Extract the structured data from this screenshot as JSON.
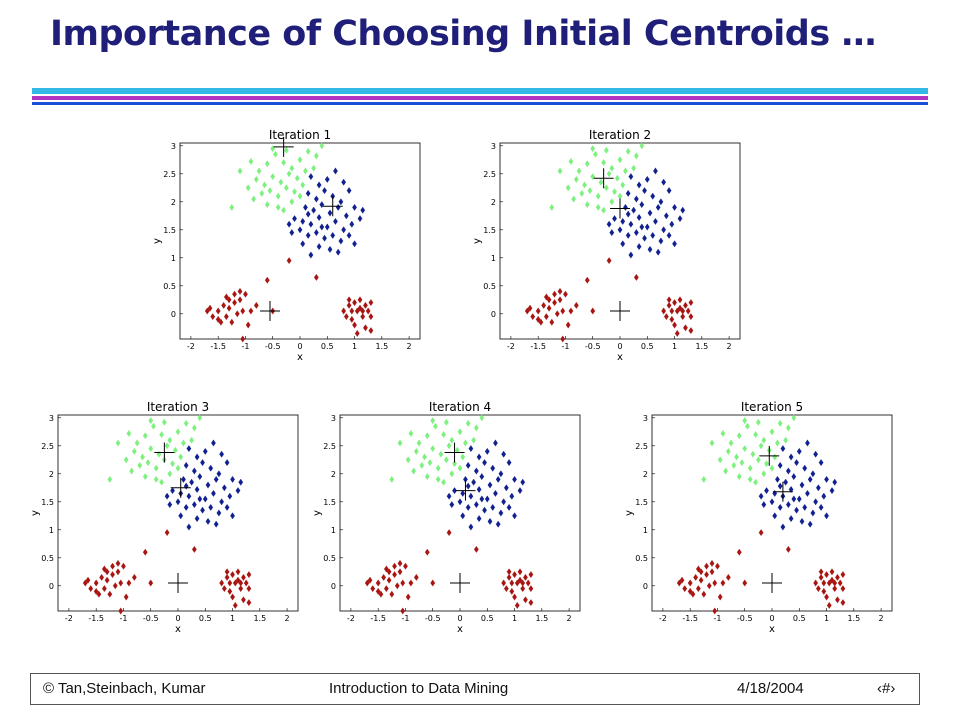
{
  "slide": {
    "title": "Importance of Choosing Initial Centroids …",
    "colors": {
      "title": "#1f1f7a",
      "bar_cyan": "#33b8e6",
      "bar_magenta": "#b232c2",
      "bar_blue": "#1a4fd6"
    }
  },
  "footer": {
    "left": "© Tan,Steinbach, Kumar",
    "center": "Introduction to Data Mining",
    "date": "4/18/2004",
    "page": "‹#›"
  },
  "chart_data": [
    {
      "type": "scatter",
      "title": "Iteration 1",
      "xlabel": "x",
      "ylabel": "y",
      "xlim": [
        -2.2,
        2.2
      ],
      "ylim": [
        -0.45,
        3.05
      ],
      "xticks": [
        "-2",
        "-1.5",
        "-1",
        "-0.5",
        "0",
        "0.5",
        "1",
        "1.5",
        "2"
      ],
      "yticks": [
        "0",
        "0.5",
        "1",
        "1.5",
        "2",
        "2.5",
        "3"
      ],
      "cluster_assignment": {
        "C1": [
          "upper_left"
        ],
        "C2": [
          "upper_right"
        ],
        "C3": [
          "lower_left",
          "lower_right"
        ]
      },
      "centroids": [
        {
          "x": -0.3,
          "y": 2.98
        },
        {
          "x": 0.6,
          "y": 1.92
        },
        {
          "x": -0.55,
          "y": 0.05
        }
      ]
    },
    {
      "type": "scatter",
      "title": "Iteration 2",
      "xlabel": "x",
      "ylabel": "y",
      "xlim": [
        -2.2,
        2.2
      ],
      "ylim": [
        -0.45,
        3.05
      ],
      "xticks": [
        "-2",
        "-1.5",
        "-1",
        "-0.5",
        "0",
        "0.5",
        "1",
        "1.5",
        "2"
      ],
      "yticks": [
        "0",
        "0.5",
        "1",
        "1.5",
        "2",
        "2.5",
        "3"
      ],
      "cluster_assignment": {
        "C1": [
          "upper_left"
        ],
        "C2": [
          "upper_right"
        ],
        "C3": [
          "lower_left",
          "lower_right"
        ]
      },
      "centroids": [
        {
          "x": -0.3,
          "y": 2.42
        },
        {
          "x": 0.0,
          "y": 1.88
        },
        {
          "x": 0.0,
          "y": 0.05
        }
      ]
    },
    {
      "type": "scatter",
      "title": "Iteration 3",
      "xlabel": "x",
      "ylabel": "y",
      "xlim": [
        -2.2,
        2.2
      ],
      "ylim": [
        -0.45,
        3.05
      ],
      "xticks": [
        "-2",
        "-1.5",
        "-1",
        "-0.5",
        "0",
        "0.5",
        "1",
        "1.5",
        "2"
      ],
      "yticks": [
        "0",
        "0.5",
        "1",
        "1.5",
        "2",
        "2.5",
        "3"
      ],
      "cluster_assignment": {
        "C1": [
          "upper_left"
        ],
        "C2": [
          "upper_right"
        ],
        "C3": [
          "lower_left",
          "lower_right"
        ]
      },
      "centroids": [
        {
          "x": -0.25,
          "y": 2.38
        },
        {
          "x": 0.05,
          "y": 1.75
        },
        {
          "x": 0.0,
          "y": 0.05
        }
      ]
    },
    {
      "type": "scatter",
      "title": "Iteration 4",
      "xlabel": "x",
      "ylabel": "y",
      "xlim": [
        -2.2,
        2.2
      ],
      "ylim": [
        -0.45,
        3.05
      ],
      "xticks": [
        "-2",
        "-1.5",
        "-1",
        "-0.5",
        "0",
        "0.5",
        "1",
        "1.5",
        "2"
      ],
      "yticks": [
        "0",
        "0.5",
        "1",
        "1.5",
        "2",
        "2.5",
        "3"
      ],
      "cluster_assignment": {
        "C1": [
          "upper_left"
        ],
        "C2": [
          "upper_right"
        ],
        "C3": [
          "lower_left",
          "lower_right"
        ]
      },
      "centroids": [
        {
          "x": -0.1,
          "y": 2.38
        },
        {
          "x": 0.1,
          "y": 1.7
        },
        {
          "x": 0.0,
          "y": 0.05
        }
      ]
    },
    {
      "type": "scatter",
      "title": "Iteration 5",
      "xlabel": "x",
      "ylabel": "y",
      "xlim": [
        -2.2,
        2.2
      ],
      "ylim": [
        -0.45,
        3.05
      ],
      "xticks": [
        "-2",
        "-1.5",
        "-1",
        "-0.5",
        "0",
        "0.5",
        "1",
        "1.5",
        "2"
      ],
      "yticks": [
        "0",
        "0.5",
        "1",
        "1.5",
        "2",
        "2.5",
        "3"
      ],
      "cluster_assignment": {
        "C1": [
          "upper_left"
        ],
        "C2": [
          "upper_right"
        ],
        "C3": [
          "lower_left",
          "lower_right"
        ]
      },
      "centroids": [
        {
          "x": -0.05,
          "y": 2.32
        },
        {
          "x": 0.2,
          "y": 1.68
        },
        {
          "x": 0.0,
          "y": 0.05
        }
      ]
    }
  ],
  "cluster_colors": {
    "C1": "#7ef07e",
    "C2": "#102090",
    "C3": "#a81410"
  },
  "data_points": {
    "upper_left": [
      [
        -0.9,
        2.72
      ],
      [
        -0.75,
        2.55
      ],
      [
        -0.6,
        2.68
      ],
      [
        -0.45,
        2.85
      ],
      [
        -0.3,
        2.7
      ],
      [
        -0.15,
        2.6
      ],
      [
        0.0,
        2.75
      ],
      [
        0.15,
        2.9
      ],
      [
        0.3,
        2.82
      ],
      [
        -0.8,
        2.4
      ],
      [
        -0.65,
        2.3
      ],
      [
        -0.5,
        2.45
      ],
      [
        -0.35,
        2.35
      ],
      [
        -0.2,
        2.5
      ],
      [
        -0.05,
        2.42
      ],
      [
        0.1,
        2.55
      ],
      [
        0.25,
        2.6
      ],
      [
        -0.7,
        2.15
      ],
      [
        -0.55,
        2.2
      ],
      [
        -0.4,
        2.1
      ],
      [
        -0.25,
        2.25
      ],
      [
        -0.1,
        2.18
      ],
      [
        0.05,
        2.3
      ],
      [
        -1.1,
        2.55
      ],
      [
        -0.95,
        2.25
      ],
      [
        -0.85,
        2.05
      ],
      [
        -0.5,
        2.95
      ],
      [
        0.4,
        3.0
      ],
      [
        -0.25,
        2.92
      ],
      [
        -0.6,
        1.95
      ],
      [
        -0.4,
        1.9
      ],
      [
        -0.15,
        2.0
      ],
      [
        -1.25,
        1.9
      ],
      [
        0.0,
        2.1
      ],
      [
        -0.3,
        1.85
      ]
    ],
    "upper_right": [
      [
        0.2,
        2.45
      ],
      [
        0.35,
        2.3
      ],
      [
        0.5,
        2.4
      ],
      [
        0.65,
        2.55
      ],
      [
        0.15,
        2.15
      ],
      [
        0.3,
        2.05
      ],
      [
        0.45,
        2.2
      ],
      [
        0.6,
        2.1
      ],
      [
        0.75,
        2.0
      ],
      [
        0.9,
        2.2
      ],
      [
        0.1,
        1.9
      ],
      [
        0.25,
        1.85
      ],
      [
        0.4,
        1.95
      ],
      [
        0.55,
        1.8
      ],
      [
        0.7,
        1.9
      ],
      [
        0.85,
        1.75
      ],
      [
        1.0,
        1.9
      ],
      [
        -0.1,
        1.7
      ],
      [
        0.05,
        1.65
      ],
      [
        0.2,
        1.6
      ],
      [
        0.35,
        1.72
      ],
      [
        0.5,
        1.55
      ],
      [
        0.65,
        1.65
      ],
      [
        0.8,
        1.5
      ],
      [
        0.95,
        1.6
      ],
      [
        1.1,
        1.7
      ],
      [
        0.15,
        1.4
      ],
      [
        0.3,
        1.45
      ],
      [
        0.45,
        1.35
      ],
      [
        0.6,
        1.4
      ],
      [
        0.75,
        1.3
      ],
      [
        0.9,
        1.4
      ],
      [
        0.0,
        1.5
      ],
      [
        -0.15,
        1.45
      ],
      [
        0.35,
        1.2
      ],
      [
        0.55,
        1.15
      ],
      [
        0.2,
        1.05
      ],
      [
        0.7,
        1.1
      ],
      [
        1.0,
        1.25
      ],
      [
        1.15,
        1.85
      ],
      [
        0.05,
        1.25
      ],
      [
        -0.2,
        1.6
      ],
      [
        0.8,
        2.35
      ],
      [
        0.4,
        1.55
      ],
      [
        0.15,
        1.78
      ]
    ],
    "lower_left": [
      [
        -1.7,
        0.05
      ],
      [
        -1.6,
        -0.05
      ],
      [
        -1.5,
        0.05
      ],
      [
        -1.4,
        0.15
      ],
      [
        -1.3,
        0.1
      ],
      [
        -1.2,
        0.2
      ],
      [
        -1.1,
        0.25
      ],
      [
        -1.0,
        0.35
      ],
      [
        -1.5,
        -0.1
      ],
      [
        -1.45,
        -0.15
      ],
      [
        -1.35,
        -0.05
      ],
      [
        -1.25,
        -0.15
      ],
      [
        -1.15,
        0.0
      ],
      [
        -1.05,
        0.05
      ],
      [
        -1.2,
        0.35
      ],
      [
        -1.3,
        0.25
      ],
      [
        -0.9,
        0.05
      ],
      [
        -0.95,
        -0.2
      ],
      [
        -1.1,
        0.4
      ],
      [
        -0.8,
        0.15
      ],
      [
        -0.6,
        0.6
      ],
      [
        -1.05,
        -0.45
      ],
      [
        -1.65,
        0.1
      ],
      [
        -1.35,
        0.3
      ],
      [
        -0.5,
        0.05
      ]
    ],
    "lower_right": [
      [
        0.8,
        0.05
      ],
      [
        0.9,
        0.15
      ],
      [
        1.0,
        0.2
      ],
      [
        1.1,
        0.1
      ],
      [
        1.2,
        0.15
      ],
      [
        1.3,
        0.2
      ],
      [
        0.85,
        -0.05
      ],
      [
        0.95,
        -0.1
      ],
      [
        1.05,
        0.05
      ],
      [
        1.15,
        -0.05
      ],
      [
        1.25,
        0.05
      ],
      [
        1.0,
        -0.2
      ],
      [
        1.2,
        -0.25
      ],
      [
        0.9,
        0.25
      ],
      [
        1.1,
        0.25
      ],
      [
        1.3,
        -0.05
      ],
      [
        0.95,
        0.05
      ],
      [
        1.15,
        0.05
      ],
      [
        1.05,
        -0.35
      ],
      [
        1.3,
        -0.3
      ],
      [
        -0.2,
        0.95
      ],
      [
        0.3,
        0.65
      ]
    ]
  }
}
